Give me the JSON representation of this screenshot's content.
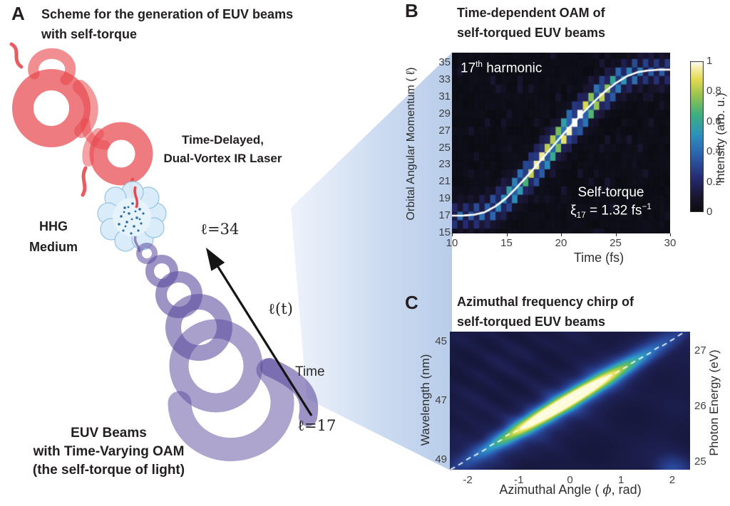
{
  "figure": {
    "background": "#ffffff",
    "text_color": "#231f20",
    "colors": {
      "ir_beam_red": "#e8484d",
      "euv_beam_purple": "#5b4b9e",
      "hhg_cloud_blue": "#d9ecf9",
      "beam_wedge_blue": "#c2d4ee",
      "heatmap_white_curve": "#ffffff"
    }
  },
  "panelA": {
    "letter": "A",
    "title_line1": "Scheme for the generation of EUV beams",
    "title_line2": "with self-torque",
    "laser_label_line1": "Time-Delayed,",
    "laser_label_line2": "Dual-Vortex IR Laser",
    "medium_label_line1": "HHG",
    "medium_label_line2": "Medium",
    "arrow_top_label": "ℓ=34",
    "arrow_mid_label": "ℓ(t)",
    "arrow_time_label": "Time",
    "arrow_bottom_label": "ℓ=17",
    "euv_label_line1": "EUV Beams",
    "euv_label_line2": "with Time-Varying OAM",
    "euv_label_line3": "(the self-torque of light)"
  },
  "panelB": {
    "letter": "B",
    "title_line1": "Time-dependent OAM of",
    "title_line2": "self-torqued EUV beams",
    "ylabel": "Orbital Angular Momentum ( ℓ)",
    "xlabel": "Time (fs)",
    "harmonic_num": "17",
    "harmonic_sup": "th",
    "harmonic_rest": " harmonic",
    "torque_line1": "Self-torque",
    "xi_symbol": "ξ",
    "xi_sub": "17",
    "xi_mid": " = 1.32 fs",
    "xi_sup": "−1",
    "colorbar_label": "Intensity (arb. u.)"
  },
  "panelC": {
    "letter": "C",
    "title_line1": "Azimuthal frequency chirp of",
    "title_line2": "self-torqued EUV beams",
    "ylabel_left": "Wavelength (nm)",
    "ylabel_right": "Photon Energy (eV)",
    "xlabel_pre": "Azimuthal Angle ( ",
    "xlabel_phi": "ϕ",
    "xlabel_post": ", rad)"
  },
  "chart_data": [
    {
      "type": "heatmap",
      "panel": "B",
      "title": "Time-dependent OAM of self-torqued EUV beams",
      "xlabel": "Time (fs)",
      "ylabel": "Orbital Angular Momentum ( ℓ)",
      "xlim": [
        10,
        30
      ],
      "ylim": [
        14.9,
        36.2
      ],
      "xticks": [
        10,
        15,
        20,
        25,
        30
      ],
      "yticks": [
        35,
        33,
        31,
        29,
        27,
        25,
        23,
        21,
        19,
        17,
        15
      ],
      "annotations": [
        "17th harmonic",
        "Self-torque ξ17 = 1.32 fs−1"
      ],
      "colorbar": {
        "label": "Intensity (arb. u.)",
        "tick_labels": [
          "1",
          "0.8",
          "0.6",
          "0.4",
          "0.2",
          "0"
        ],
        "tick_values": [
          1,
          0.8,
          0.6,
          0.4,
          0.2,
          0
        ]
      },
      "curve": {
        "name": "time-dependent OAM ℓ(t)",
        "t_fs": [
          10,
          11,
          12,
          13,
          14,
          15,
          16,
          17,
          18,
          19,
          20,
          21,
          22,
          23,
          24,
          25,
          26,
          27,
          28,
          29,
          30
        ],
        "oam_l": [
          17,
          17,
          17.1,
          17.4,
          18.1,
          19.1,
          20.4,
          21.8,
          23.3,
          24.8,
          26.3,
          27.7,
          29.1,
          30.4,
          31.6,
          32.6,
          33.4,
          33.9,
          34.1,
          34.2,
          34.2
        ]
      },
      "heatmap_model": {
        "ridge_sigma_l": 1.15,
        "amp_peak_t": 20.3,
        "amp_sigma_t": 5.3,
        "amp_floor": 0.25,
        "checkerboard_dim_factor": 0.38
      }
    },
    {
      "type": "heatmap",
      "panel": "C",
      "title": "Azimuthal frequency chirp of self-torqued EUV beams",
      "xlabel": "Azimuthal Angle ( ϕ, rad)",
      "ylabel_left": "Wavelength (nm)",
      "ylabel_right": "Photon Energy (eV)",
      "xlim": [
        -2.35,
        2.35
      ],
      "ylim_wavelength_nm": [
        49.35,
        44.65
      ],
      "xticks": [
        -2,
        -1,
        0,
        1,
        2
      ],
      "yticks_left": [
        45,
        47,
        49
      ],
      "yticks_right": [
        27,
        26,
        25
      ],
      "ridge": {
        "description": "bright elliptical ridge with overlaid white dashed line",
        "lambda_at_phi0_nm": 46.95,
        "slope_nm_per_rad": -1.02,
        "center_phi": -0.1,
        "sigma_along_rad": 1.05,
        "sigma_perp_nm": 0.23
      }
    }
  ]
}
